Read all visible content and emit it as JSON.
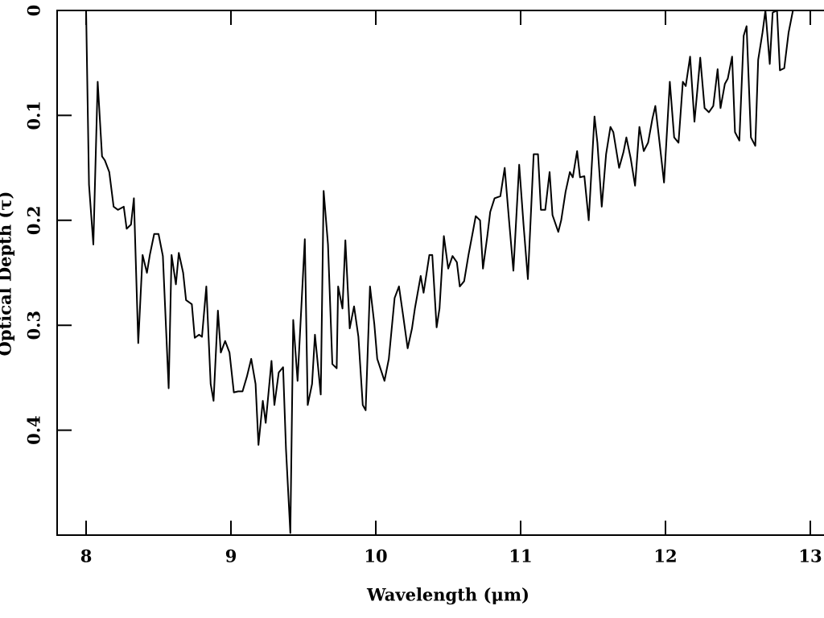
{
  "chart_data": {
    "type": "line",
    "color": "#000000",
    "xlabel": "Wavelength (μm)",
    "ylabel": "Optical Depth (τ)",
    "xlim": [
      7.8,
      13.1
    ],
    "ylim": [
      0.5,
      0
    ],
    "xticks": [
      8,
      9,
      10,
      11,
      12,
      13
    ],
    "yticks": [
      0,
      0.1,
      0.2,
      0.3,
      0.4
    ],
    "x": [
      8.0,
      8.02,
      8.05,
      8.08,
      8.11,
      8.13,
      8.16,
      8.19,
      8.22,
      8.26,
      8.28,
      8.31,
      8.33,
      8.36,
      8.39,
      8.42,
      8.44,
      8.47,
      8.5,
      8.53,
      8.57,
      8.59,
      8.62,
      8.64,
      8.67,
      8.69,
      8.73,
      8.75,
      8.78,
      8.8,
      8.83,
      8.86,
      8.88,
      8.91,
      8.93,
      8.96,
      8.99,
      9.02,
      9.05,
      9.08,
      9.11,
      9.14,
      9.17,
      9.19,
      9.22,
      9.24,
      9.28,
      9.3,
      9.33,
      9.36,
      9.38,
      9.41,
      9.43,
      9.46,
      9.51,
      9.53,
      9.56,
      9.58,
      9.62,
      9.64,
      9.67,
      9.7,
      9.73,
      9.74,
      9.77,
      9.79,
      9.82,
      9.85,
      9.88,
      9.91,
      9.93,
      9.96,
      9.99,
      10.01,
      10.06,
      10.09,
      10.13,
      10.16,
      10.19,
      10.22,
      10.25,
      10.27,
      10.31,
      10.33,
      10.37,
      10.39,
      10.42,
      10.44,
      10.47,
      10.5,
      10.53,
      10.56,
      10.58,
      10.61,
      10.64,
      10.67,
      10.69,
      10.72,
      10.74,
      10.77,
      10.79,
      10.82,
      10.86,
      10.89,
      10.92,
      10.95,
      10.99,
      11.02,
      11.05,
      11.09,
      11.12,
      11.14,
      11.17,
      11.2,
      11.22,
      11.26,
      11.28,
      11.31,
      11.34,
      11.36,
      11.39,
      11.41,
      11.44,
      11.47,
      11.51,
      11.53,
      11.56,
      11.59,
      11.62,
      11.64,
      11.68,
      11.71,
      11.73,
      11.76,
      11.79,
      11.82,
      11.85,
      11.88,
      11.91,
      11.93,
      11.96,
      11.99,
      12.03,
      12.06,
      12.09,
      12.12,
      12.14,
      12.17,
      12.2,
      12.22,
      12.24,
      12.27,
      12.3,
      12.33,
      12.36,
      12.38,
      12.41,
      12.43,
      12.46,
      12.48,
      12.51,
      12.54,
      12.56,
      12.59,
      12.62,
      12.64,
      12.67,
      12.69,
      12.72,
      12.74,
      12.77,
      12.79,
      12.82,
      12.85,
      12.88
    ],
    "values": [
      0,
      0.166,
      0.223,
      0.068,
      0.139,
      0.143,
      0.154,
      0.187,
      0.19,
      0.187,
      0.208,
      0.204,
      0.179,
      0.317,
      0.233,
      0.25,
      0.233,
      0.213,
      0.213,
      0.234,
      0.36,
      0.233,
      0.261,
      0.231,
      0.25,
      0.276,
      0.28,
      0.312,
      0.309,
      0.311,
      0.263,
      0.356,
      0.372,
      0.286,
      0.326,
      0.315,
      0.326,
      0.364,
      0.363,
      0.363,
      0.349,
      0.332,
      0.356,
      0.414,
      0.372,
      0.393,
      0.334,
      0.376,
      0.345,
      0.34,
      0.418,
      0.498,
      0.295,
      0.353,
      0.218,
      0.376,
      0.356,
      0.309,
      0.366,
      0.172,
      0.223,
      0.337,
      0.341,
      0.263,
      0.284,
      0.219,
      0.303,
      0.282,
      0.311,
      0.376,
      0.381,
      0.263,
      0.299,
      0.332,
      0.353,
      0.332,
      0.274,
      0.263,
      0.292,
      0.322,
      0.303,
      0.284,
      0.253,
      0.269,
      0.233,
      0.233,
      0.302,
      0.284,
      0.215,
      0.246,
      0.234,
      0.24,
      0.263,
      0.258,
      0.233,
      0.211,
      0.196,
      0.2,
      0.246,
      0.215,
      0.192,
      0.179,
      0.177,
      0.15,
      0.2,
      0.248,
      0.147,
      0.204,
      0.256,
      0.137,
      0.137,
      0.19,
      0.19,
      0.154,
      0.195,
      0.211,
      0.2,
      0.173,
      0.154,
      0.159,
      0.134,
      0.159,
      0.158,
      0.2,
      0.101,
      0.126,
      0.187,
      0.137,
      0.111,
      0.116,
      0.15,
      0.135,
      0.121,
      0.141,
      0.167,
      0.111,
      0.134,
      0.126,
      0.103,
      0.091,
      0.127,
      0.164,
      0.068,
      0.121,
      0.126,
      0.068,
      0.072,
      0.044,
      0.106,
      0.076,
      0.045,
      0.093,
      0.097,
      0.091,
      0.056,
      0.093,
      0.07,
      0.065,
      0.044,
      0.116,
      0.124,
      0.024,
      0.015,
      0.121,
      0.129,
      0.047,
      0.021,
      0,
      0.051,
      0.002,
      0,
      0.057,
      0.055,
      0.021,
      0
    ]
  }
}
